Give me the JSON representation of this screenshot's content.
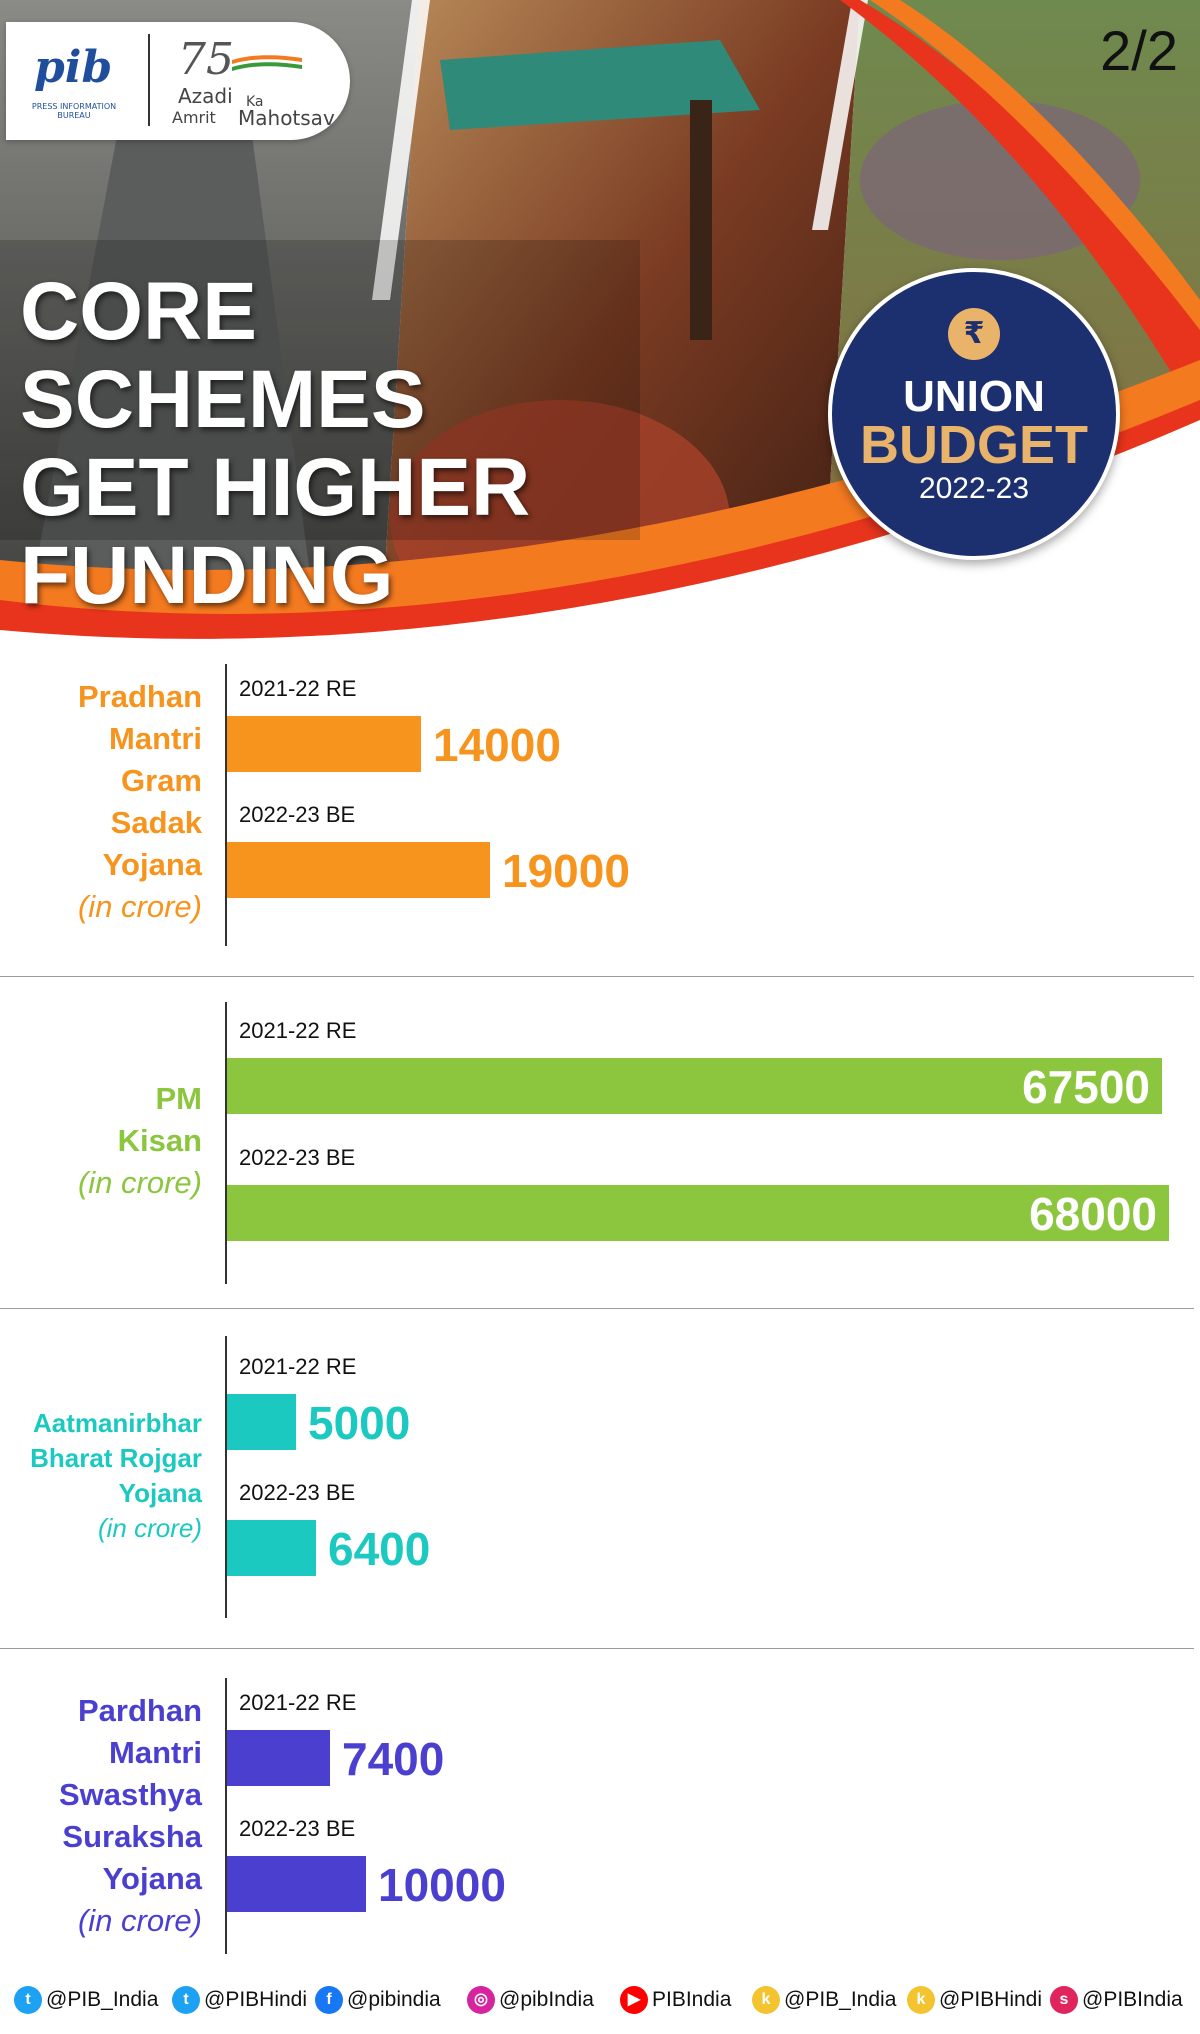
{
  "header": {
    "page_number": "2/2",
    "title_lines": [
      "CORE SCHEMES",
      "GET HIGHER",
      "FUNDING"
    ],
    "logos": {
      "pib": {
        "text": "pib",
        "subtext": "PRESS INFORMATION BUREAU"
      },
      "akam": {
        "number": "75",
        "azadi": "Azadi",
        "ka": "Ka",
        "amrit": "Amrit",
        "mahotsav": "Mahotsav"
      }
    },
    "badge": {
      "icon": "rupee-icon",
      "symbol": "₹",
      "line1": "UNION",
      "line2": "BUDGET",
      "line3": "2022-23"
    },
    "colors": {
      "accent_red": "#e8341c",
      "accent_orange": "#f47a20",
      "badge_navy": "#1c2f6e",
      "badge_gold": "#e8b36a"
    }
  },
  "chart_data": [
    {
      "type": "bar",
      "title": "Pradhan Mantri Gram Sadak Yojana",
      "unit": "(in crore)",
      "color": "#f7941d",
      "categories": [
        "2021-22 RE",
        "2022-23 BE"
      ],
      "values": [
        14000,
        19000
      ]
    },
    {
      "type": "bar",
      "title": "PM Kisan",
      "unit": "(in crore)",
      "color": "#8cc63f",
      "categories": [
        "2021-22 RE",
        "2022-23 BE"
      ],
      "values": [
        67500,
        68000
      ]
    },
    {
      "type": "bar",
      "title": "Aatmanirbhar Bharat Rojgar Yojana",
      "unit": "(in crore)",
      "color": "#1cc9c0",
      "categories": [
        "2021-22 RE",
        "2022-23 BE"
      ],
      "values": [
        5000,
        6400
      ]
    },
    {
      "type": "bar",
      "title": "Pardhan Mantri Swasthya Suraksha Yojana",
      "unit": "(in crore)",
      "color": "#4b3fd0",
      "categories": [
        "2021-22 RE",
        "2022-23 BE"
      ],
      "values": [
        7400,
        10000
      ]
    }
  ],
  "footer": {
    "socials": [
      {
        "icon": "twitter-icon",
        "handle": "@PIB_India",
        "color": "#1da1f2",
        "glyph": "t"
      },
      {
        "icon": "twitter-icon",
        "handle": "@PIBHindi",
        "color": "#1da1f2",
        "glyph": "t"
      },
      {
        "icon": "facebook-icon",
        "handle": "@pibindia",
        "color": "#1877f2",
        "glyph": "f"
      },
      {
        "icon": "instagram-icon",
        "handle": "@pibIndia",
        "color": "#d6249f",
        "glyph": "◎"
      },
      {
        "icon": "youtube-icon",
        "handle": "PIBIndia",
        "color": "#ff0000",
        "glyph": "▶"
      },
      {
        "icon": "koo-icon",
        "handle": "@PIB_India",
        "color": "#f4c430",
        "glyph": "k"
      },
      {
        "icon": "koo-icon",
        "handle": "@PIBHindi",
        "color": "#f4c430",
        "glyph": "k"
      },
      {
        "icon": "sharechat-icon",
        "handle": "@PIBIndia",
        "color": "#e0245e",
        "glyph": "s"
      }
    ]
  }
}
